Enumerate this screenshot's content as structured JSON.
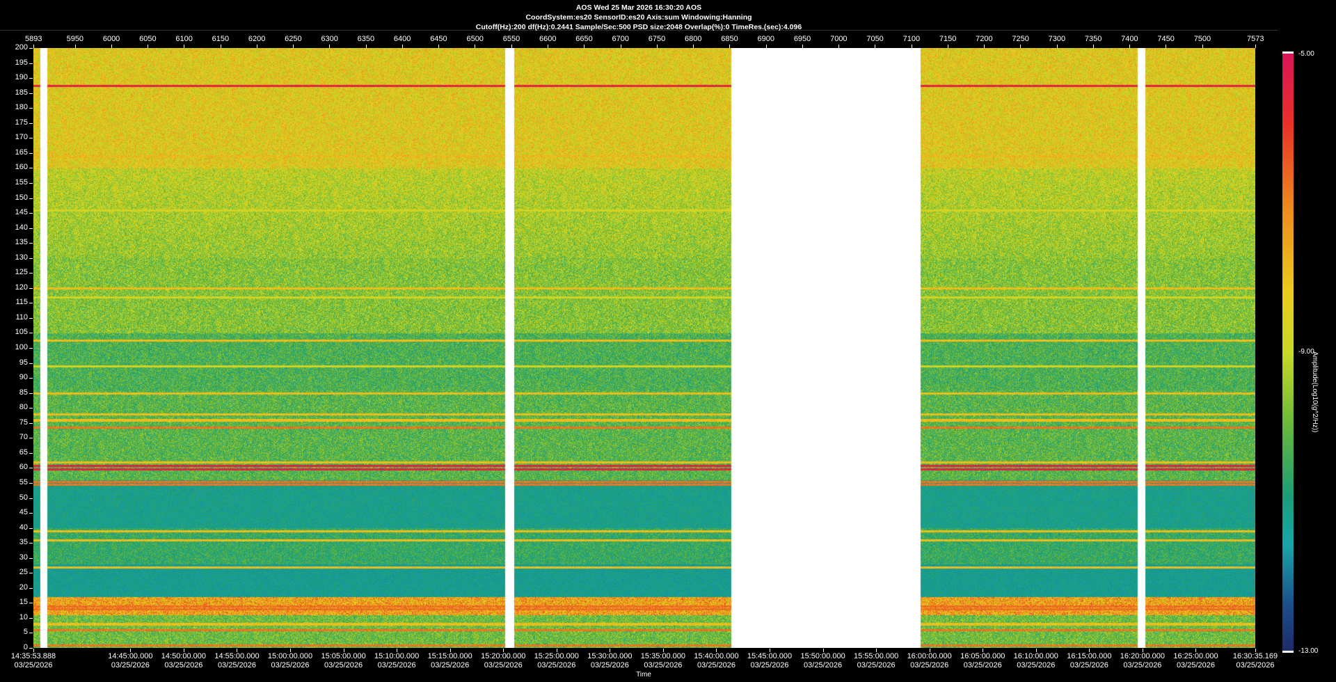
{
  "header": {
    "line1": "AOS  Wed 25 Mar 2026 16:30:20  AOS",
    "line2": "CoordSystem:es20   SensorID:es20    Axis:sum    Windowing:Hanning",
    "line3": "Cutoff(Hz):200      df(Hz):0.2441      Sample/Sec:500      PSD size:2048       Overlap(%):0         TimeRes.(sec):4.096"
  },
  "chart_data": {
    "type": "heatmap",
    "title": "AOS  Wed 25 Mar 2026 16:30:20  AOS",
    "xlabel": "Time",
    "ylabel": "",
    "ylim": [
      0,
      200
    ],
    "y_ticks": [
      0,
      5,
      10,
      15,
      20,
      25,
      30,
      35,
      40,
      45,
      50,
      55,
      60,
      65,
      70,
      75,
      80,
      85,
      90,
      95,
      100,
      105,
      110,
      115,
      120,
      125,
      130,
      135,
      140,
      145,
      150,
      155,
      160,
      165,
      170,
      175,
      180,
      185,
      190,
      195,
      200
    ],
    "top_axis": {
      "range": [
        5893,
        7573
      ],
      "ticks": [
        "5893",
        "5950",
        "6000",
        "6050",
        "6100",
        "6150",
        "6200",
        "6250",
        "6300",
        "6350",
        "6400",
        "6450",
        "6500",
        "6550",
        "6600",
        "6650",
        "6700",
        "6750",
        "6800",
        "6850",
        "6900",
        "6950",
        "7000",
        "7050",
        "7100",
        "7150",
        "7200",
        "7250",
        "7300",
        "7350",
        "7400",
        "7450",
        "7500",
        "7573"
      ]
    },
    "time_axis": {
      "start": "14:35:53.888",
      "end": "16:30:35.169",
      "date": "03/25/2026",
      "labels": [
        "14:35:53.888",
        "14:45:00.000",
        "14:50:00.000",
        "14:55:00.000",
        "15:00:00.000",
        "15:05:00.000",
        "15:10:00.000",
        "15:15:00.000",
        "15:20:00.000",
        "15:25:00.000",
        "15:30:00.000",
        "15:35:00.000",
        "15:40:00.000",
        "15:45:00.000",
        "15:50:00.000",
        "15:55:00.000",
        "16:00:00.000",
        "16:05:00.000",
        "16:10:00.000",
        "16:15:00.000",
        "16:20:00.000",
        "16:25:00.000",
        "16:30:35.169"
      ]
    },
    "gaps": [
      [
        5902,
        5912
      ],
      [
        6541,
        6554
      ],
      [
        6852,
        7112
      ],
      [
        7411,
        7421
      ]
    ],
    "tonal_lines_hz": [
      {
        "hz": 1,
        "level": "high"
      },
      {
        "hz": 6,
        "level": "high"
      },
      {
        "hz": 8,
        "level": "mid"
      },
      {
        "hz": 13,
        "level": "high"
      },
      {
        "hz": 14,
        "level": "high"
      },
      {
        "hz": 27,
        "level": "mid"
      },
      {
        "hz": 36,
        "level": "mid"
      },
      {
        "hz": 39,
        "level": "mid"
      },
      {
        "hz": 54.5,
        "level": "high"
      },
      {
        "hz": 55.5,
        "level": "high"
      },
      {
        "hz": 59.7,
        "level": "peak"
      },
      {
        "hz": 60.8,
        "level": "peak"
      },
      {
        "hz": 62,
        "level": "mid"
      },
      {
        "hz": 73.5,
        "level": "high"
      },
      {
        "hz": 76,
        "level": "mid"
      },
      {
        "hz": 78,
        "level": "mid"
      },
      {
        "hz": 85,
        "level": "mid"
      },
      {
        "hz": 94,
        "level": "low"
      },
      {
        "hz": 102.5,
        "level": "mid"
      },
      {
        "hz": 117,
        "level": "low"
      },
      {
        "hz": 120,
        "level": "mid"
      },
      {
        "hz": 146,
        "level": "low"
      },
      {
        "hz": 164,
        "level": "mid"
      },
      {
        "hz": 187.5,
        "level": "peak"
      }
    ],
    "colorbar": {
      "label": "Amplitude(Log10(g^2/Hz))",
      "max": "-5.00",
      "mid": "-9.00",
      "min": "-13.00",
      "colors": [
        "#d8145a",
        "#ee8a1e",
        "#eacc1c",
        "#6ab83a",
        "#18a6a8",
        "#1c2a68"
      ]
    }
  }
}
